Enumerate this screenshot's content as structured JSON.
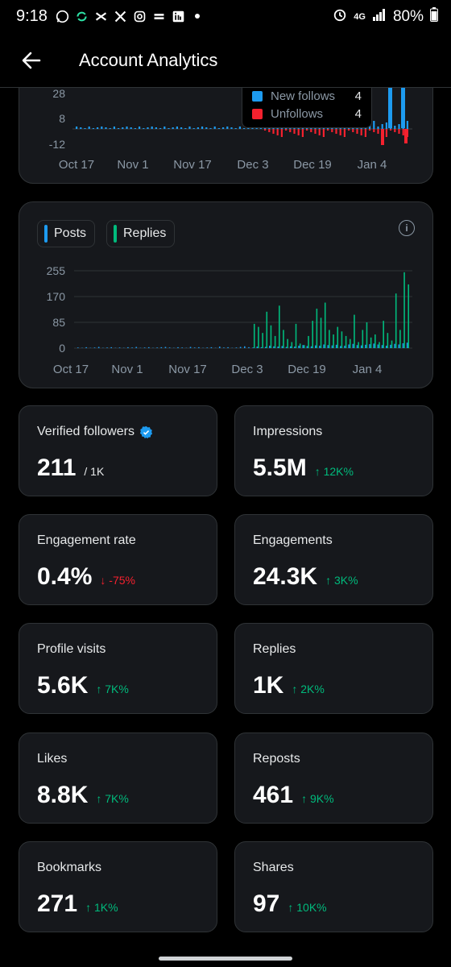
{
  "status_bar": {
    "time": "9:18",
    "battery": "80%",
    "network": "4G",
    "app_icons": [
      "whatsapp-icon",
      "sync-icon",
      "capcut-icon",
      "x-icon",
      "instagram-icon",
      "cloud-icon",
      "linkedin-icon",
      "dot-icon"
    ]
  },
  "header": {
    "title": "Account Analytics"
  },
  "follows_chart": {
    "legend": [
      {
        "name": "New follows",
        "value": "4",
        "color": "#1d9bf0"
      },
      {
        "name": "Unfollows",
        "value": "4",
        "color": "#f4212e"
      }
    ],
    "y_ticks": [
      "28",
      "8",
      "-12"
    ],
    "x_ticks": [
      "Oct 17",
      "Nov 1",
      "Nov 17",
      "Dec 3",
      "Dec 19",
      "Jan 4"
    ]
  },
  "chart_data": {
    "type": "bar",
    "legend": [
      "Posts",
      "Replies"
    ],
    "ylim": [
      0,
      255
    ],
    "y_ticks": [
      "255",
      "170",
      "85",
      "0"
    ],
    "x_ticks": [
      "Oct 17",
      "Nov 1",
      "Nov 17",
      "Dec 3",
      "Dec 19",
      "Jan 4"
    ],
    "series": [
      {
        "name": "Posts",
        "color": "#1d9bf0",
        "values": [
          2,
          1,
          3,
          1,
          2,
          4,
          1,
          2,
          3,
          1,
          2,
          1,
          3,
          2,
          4,
          1,
          2,
          3,
          1,
          2,
          3,
          4,
          2,
          1,
          3,
          2,
          1,
          4,
          2,
          3,
          1,
          2,
          3,
          1,
          5,
          2,
          3,
          1,
          2,
          4,
          6,
          3,
          2,
          5,
          3,
          4,
          8,
          6,
          5,
          7,
          4,
          6,
          5,
          8,
          10,
          7,
          6,
          9,
          8,
          12,
          10,
          9,
          11,
          7,
          8,
          12,
          14,
          10,
          9,
          11,
          13,
          15,
          12,
          10,
          8,
          11,
          14,
          12,
          16,
          18
        ]
      },
      {
        "name": "Replies",
        "color": "#00ba7c",
        "values": [
          0,
          0,
          0,
          0,
          0,
          0,
          0,
          0,
          0,
          0,
          0,
          0,
          0,
          0,
          0,
          0,
          0,
          0,
          0,
          0,
          0,
          0,
          0,
          0,
          0,
          0,
          0,
          0,
          0,
          0,
          0,
          0,
          0,
          0,
          0,
          0,
          0,
          0,
          0,
          0,
          0,
          0,
          80,
          70,
          50,
          120,
          75,
          40,
          140,
          60,
          30,
          20,
          80,
          15,
          10,
          40,
          90,
          130,
          100,
          150,
          60,
          45,
          70,
          55,
          40,
          30,
          110,
          20,
          60,
          85,
          35,
          45,
          20,
          90,
          50,
          25,
          180,
          60,
          250,
          210
        ]
      }
    ]
  },
  "tiles": [
    {
      "label": "Verified followers",
      "value": "211",
      "suffix": "/ 1K",
      "verified": true
    },
    {
      "label": "Impressions",
      "value": "5.5M",
      "delta": "↑ 12K%",
      "dir": "up"
    },
    {
      "label": "Engagement rate",
      "value": "0.4%",
      "delta": "↓ -75%",
      "dir": "down"
    },
    {
      "label": "Engagements",
      "value": "24.3K",
      "delta": "↑ 3K%",
      "dir": "up"
    },
    {
      "label": "Profile visits",
      "value": "5.6K",
      "delta": "↑ 7K%",
      "dir": "up"
    },
    {
      "label": "Replies",
      "value": "1K",
      "delta": "↑ 2K%",
      "dir": "up"
    },
    {
      "label": "Likes",
      "value": "8.8K",
      "delta": "↑ 7K%",
      "dir": "up"
    },
    {
      "label": "Reposts",
      "value": "461",
      "delta": "↑ 9K%",
      "dir": "up"
    },
    {
      "label": "Bookmarks",
      "value": "271",
      "delta": "↑ 1K%",
      "dir": "up"
    },
    {
      "label": "Shares",
      "value": "97",
      "delta": "↑ 10K%",
      "dir": "up"
    }
  ]
}
